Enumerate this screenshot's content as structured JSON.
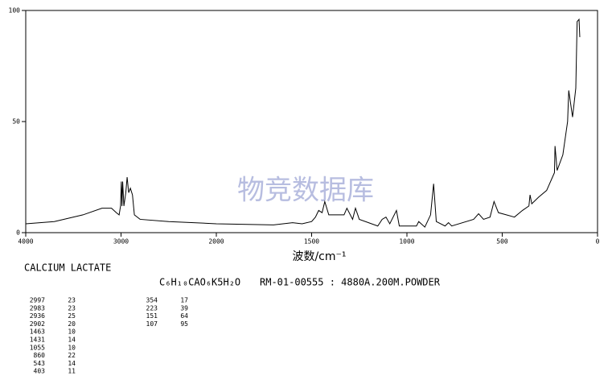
{
  "chart_data": {
    "type": "line",
    "title": "CALCIUM LACTATE",
    "formula": "C₆H₁₀CAO₆K5H₂O",
    "subtitle": "RM-01-00555 : 4880A.200M.POWDER",
    "xlabel": "波数/cm⁻¹",
    "watermark": "物竞数据库",
    "xlim": [
      4000,
      0
    ],
    "xticks": [
      4000,
      3000,
      2000,
      1500,
      1000,
      500,
      0
    ],
    "ylim": [
      0,
      100
    ],
    "yticks": [
      0,
      50,
      100
    ],
    "x": [
      4000,
      3700,
      3400,
      3200,
      3100,
      3050,
      3020,
      3005,
      2997,
      2990,
      2983,
      2970,
      2950,
      2936,
      2920,
      2902,
      2880,
      2860,
      2800,
      2500,
      2000,
      1700,
      1600,
      1550,
      1500,
      1480,
      1463,
      1445,
      1431,
      1410,
      1330,
      1315,
      1285,
      1270,
      1250,
      1153,
      1130,
      1110,
      1090,
      1055,
      1040,
      950,
      938,
      906,
      876,
      860,
      846,
      800,
      782,
      765,
      650,
      624,
      598,
      564,
      543,
      520,
      436,
      394,
      360,
      354,
      345,
      309,
      267,
      226,
      223,
      212,
      182,
      157,
      151,
      131,
      114,
      107,
      97,
      93
    ],
    "series": [
      {
        "name": "spectrum",
        "color": "#000000",
        "values": [
          4,
          5,
          8,
          11,
          11,
          9,
          8,
          12,
          23,
          12,
          23,
          12,
          18,
          25,
          18,
          20,
          17,
          8,
          6,
          5,
          4,
          3.5,
          4.5,
          4,
          5,
          7,
          10,
          9,
          14,
          8,
          8,
          11,
          6,
          11,
          6,
          3,
          6,
          7,
          4,
          10,
          3,
          3,
          5,
          2.5,
          8,
          22,
          5,
          3,
          4.5,
          3,
          6,
          8.5,
          6,
          7,
          14,
          9,
          7,
          10,
          12,
          17,
          13,
          16,
          19,
          27,
          39,
          28,
          35,
          50,
          64,
          52,
          65,
          95,
          96,
          88
        ]
      }
    ],
    "peak_table": [
      [
        2997,
        23
      ],
      [
        2983,
        23
      ],
      [
        2936,
        25
      ],
      [
        2902,
        20
      ],
      [
        1463,
        10
      ],
      [
        1431,
        14
      ],
      [
        1055,
        10
      ],
      [
        860,
        22
      ],
      [
        543,
        14
      ],
      [
        403,
        11
      ],
      [
        354,
        17
      ],
      [
        223,
        39
      ],
      [
        151,
        64
      ],
      [
        107,
        95
      ]
    ]
  }
}
